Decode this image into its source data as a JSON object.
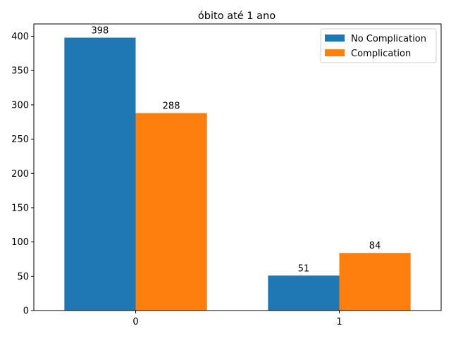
{
  "chart_data": {
    "type": "bar",
    "title": "óbito até 1 ano",
    "xlabel": "",
    "ylabel": "",
    "categories": [
      "0",
      "1"
    ],
    "series": [
      {
        "name": "No Complication",
        "values": [
          398,
          51
        ],
        "color": "#1f77b4"
      },
      {
        "name": "Complication",
        "values": [
          288,
          84
        ],
        "color": "#ff7f0e"
      }
    ],
    "ylim": [
      0,
      418
    ],
    "yticks": [
      0,
      50,
      100,
      150,
      200,
      250,
      300,
      350,
      400
    ],
    "grid": false,
    "legend": {
      "placement": "top-right"
    }
  }
}
